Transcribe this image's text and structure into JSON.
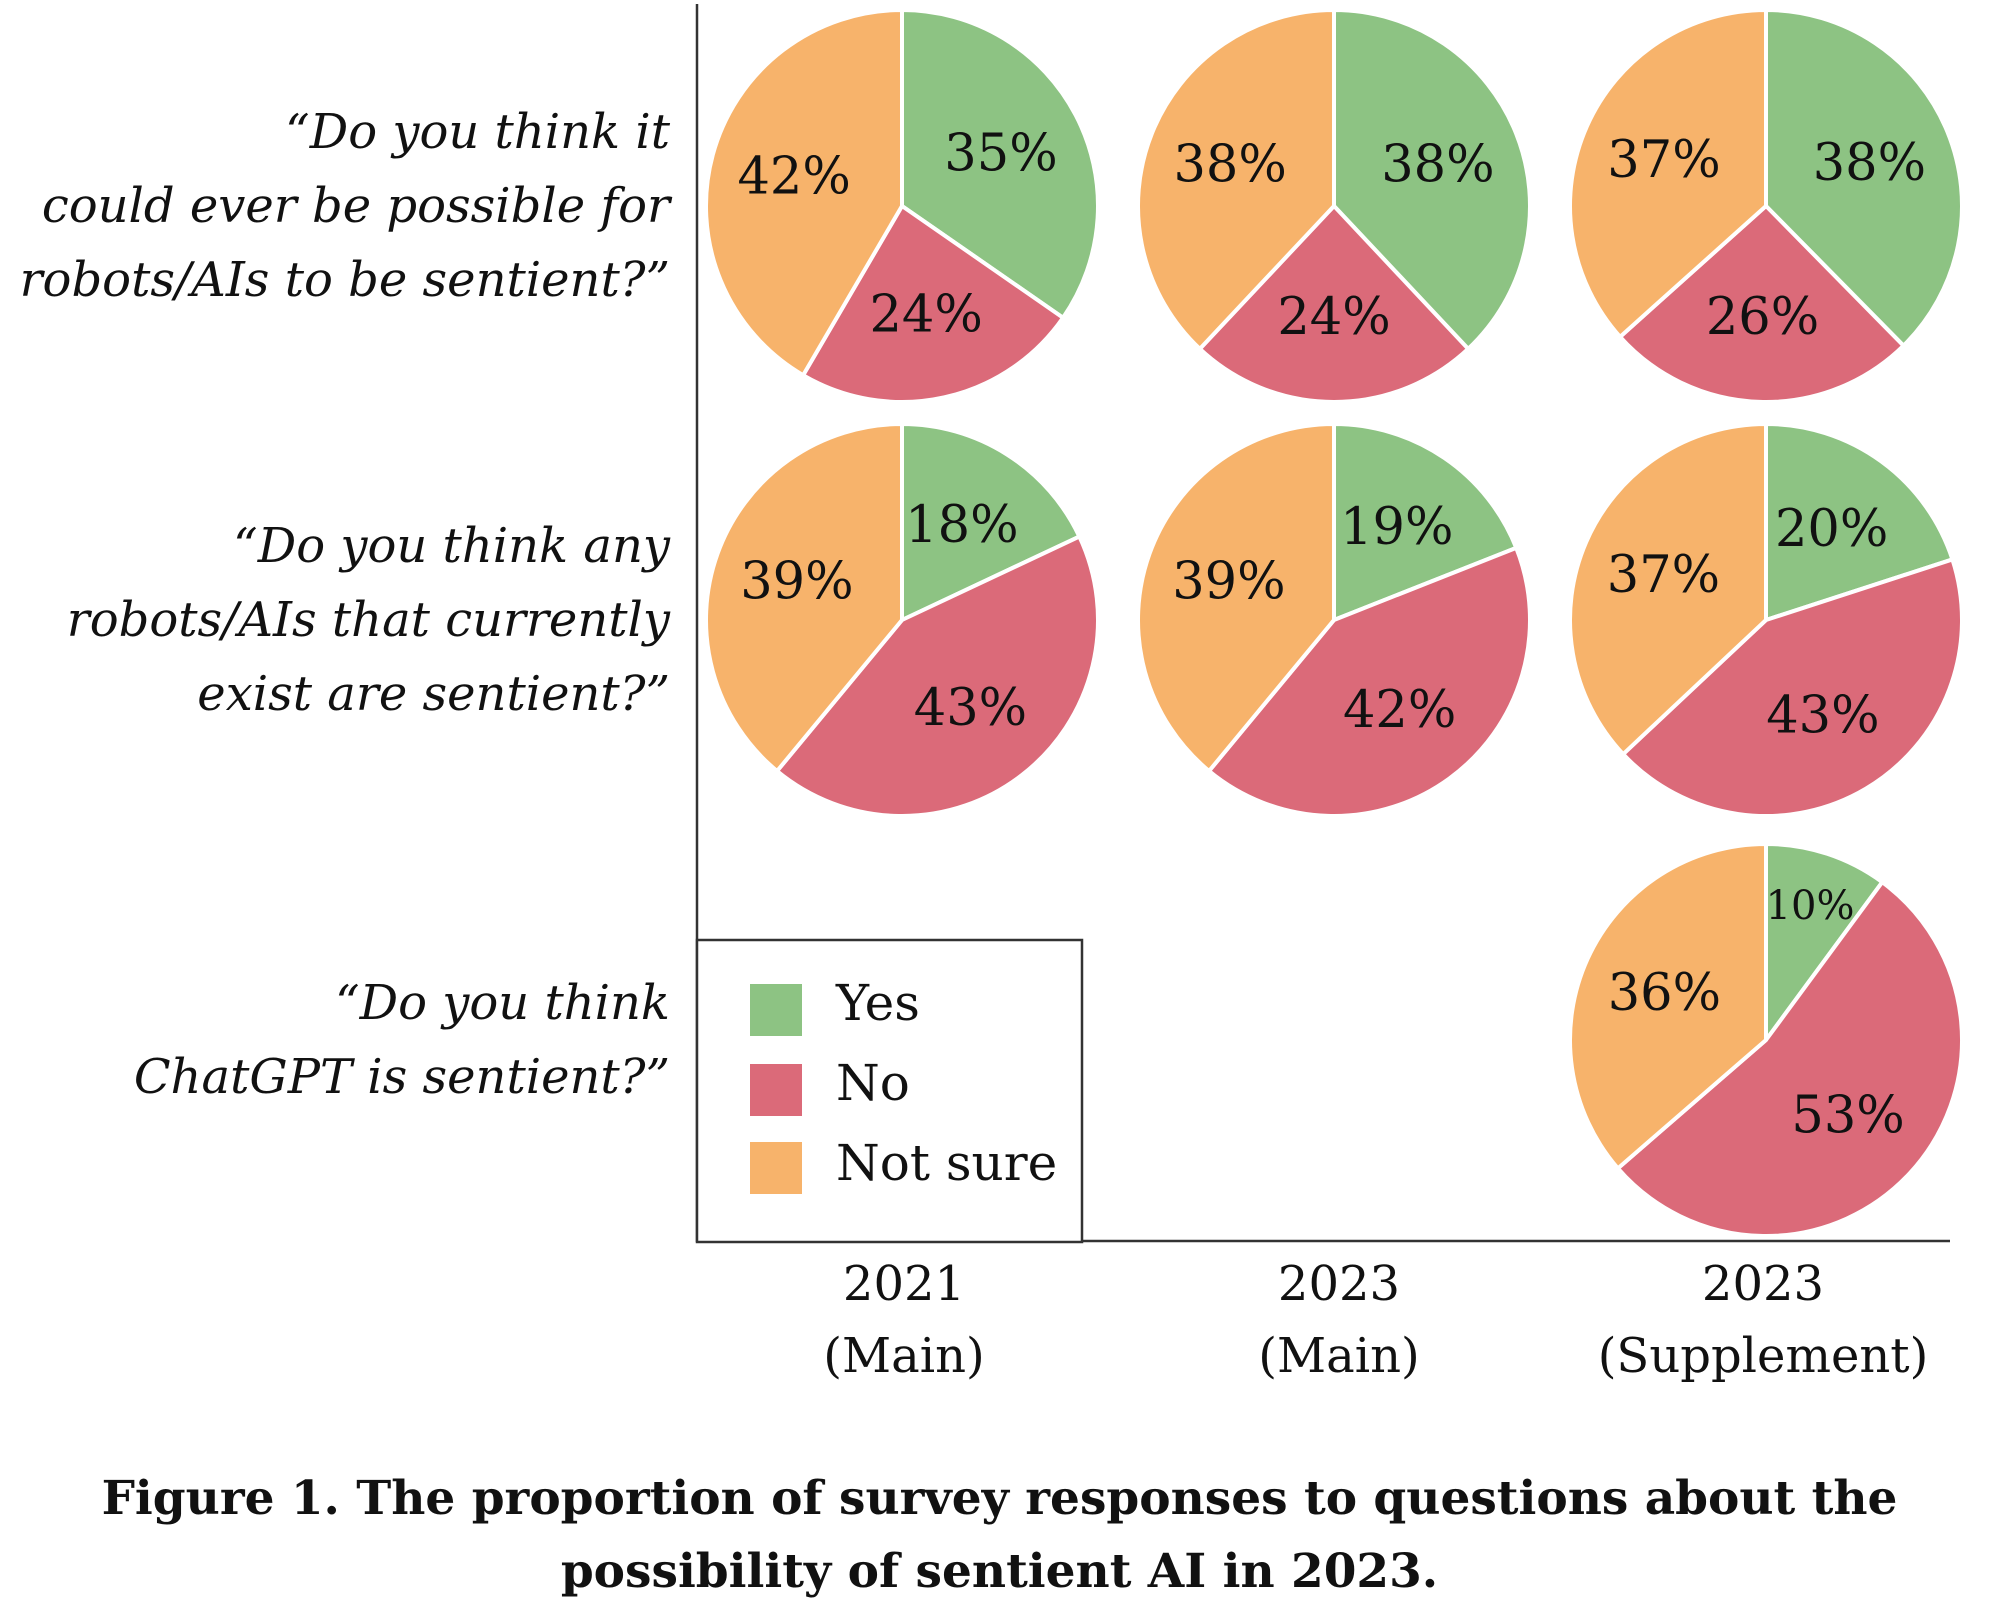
{
  "chart_data": {
    "type": "pie",
    "colors": {
      "Yes": "#8dc383",
      "No": "#db6a79",
      "Not sure": "#f7b36b"
    },
    "legend": [
      "Yes",
      "No",
      "Not sure"
    ],
    "columns": [
      {
        "line1": "2021",
        "line2": "(Main)"
      },
      {
        "line1": "2023",
        "line2": "(Main)"
      },
      {
        "line1": "2023",
        "line2": "(Supplement)"
      }
    ],
    "rows": [
      {
        "question_lines": [
          "“Do you think it",
          "could ever be possible for",
          "robots/AIs to be sentient?”"
        ],
        "pies": [
          {
            "values": {
              "Yes": 35,
              "No": 24,
              "Not sure": 42
            },
            "labels": {
              "Yes": "35%",
              "No": "24%",
              "Not sure": "42%"
            }
          },
          {
            "values": {
              "Yes": 38,
              "No": 24,
              "Not sure": 38
            },
            "labels": {
              "Yes": "38%",
              "No": "24%",
              "Not sure": "38%"
            }
          },
          {
            "values": {
              "Yes": 38,
              "No": 26,
              "Not sure": 37
            },
            "labels": {
              "Yes": "38%",
              "No": "26%",
              "Not sure": "37%"
            }
          }
        ]
      },
      {
        "question_lines": [
          "“Do you think any",
          "robots/AIs that currently",
          "exist are sentient?”"
        ],
        "pies": [
          {
            "values": {
              "Yes": 18,
              "No": 43,
              "Not sure": 39
            },
            "labels": {
              "Yes": "18%",
              "No": "43%",
              "Not sure": "39%"
            }
          },
          {
            "values": {
              "Yes": 19,
              "No": 42,
              "Not sure": 39
            },
            "labels": {
              "Yes": "19%",
              "No": "42%",
              "Not sure": "39%"
            }
          },
          {
            "values": {
              "Yes": 20,
              "No": 43,
              "Not sure": 37
            },
            "labels": {
              "Yes": "20%",
              "No": "43%",
              "Not sure": "37%"
            }
          }
        ]
      },
      {
        "question_lines": [
          "“Do you think",
          "ChatGPT is sentient?”"
        ],
        "pies": [
          null,
          null,
          {
            "values": {
              "Yes": 10,
              "No": 53,
              "Not sure": 36
            },
            "labels": {
              "Yes": "10%",
              "No": "53%",
              "Not sure": "36%"
            }
          }
        ]
      }
    ]
  },
  "caption": {
    "line1": "Figure 1. The proportion of survey responses to questions about the",
    "line2": "possibility of sentient AI in 2023."
  }
}
